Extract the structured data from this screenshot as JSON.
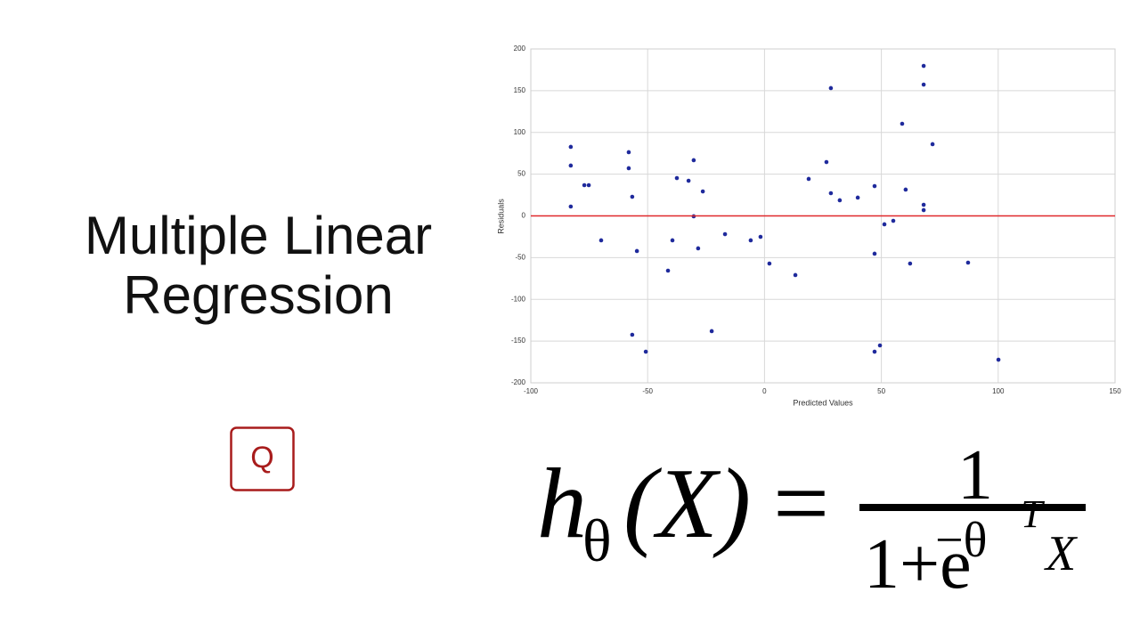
{
  "slide": {
    "title_lines": [
      "Multiple Linear",
      "Regression"
    ],
    "logo_letter": "Q"
  },
  "chart_data": {
    "type": "scatter",
    "x_label": "Predicted Values",
    "y_label": "Residuals",
    "x": [
      -82.9,
      -82.9,
      -82.9,
      -77.1,
      -75.2,
      -69.9,
      -58.1,
      -58.1,
      -56.6,
      -56.6,
      -54.6,
      -50.8,
      -41.3,
      -39.4,
      -37.5,
      -32.5,
      -30.3,
      -30.3,
      -28.4,
      -26.4,
      -22.6,
      -16.9,
      -5.9,
      -1.7,
      2.1,
      13.2,
      18.9,
      26.5,
      28.4,
      28.4,
      32.2,
      39.9,
      47.1,
      47.1,
      47.1,
      49.4,
      51.3,
      55.1,
      58.9,
      60.4,
      62.3,
      68.1,
      68.1,
      68.1,
      68.1,
      71.9,
      87.1,
      100.1
    ],
    "values": [
      82.7,
      60.3,
      11.2,
      36.8,
      36.8,
      -29.3,
      76.3,
      57.1,
      22.9,
      -142.4,
      -42.1,
      -162.7,
      -65.6,
      -29.3,
      45.3,
      42.1,
      66.7,
      -0.5,
      -38.9,
      29.3,
      -138.1,
      -21.9,
      -29.3,
      -25.1,
      -57.1,
      -70.9,
      44.3,
      64.5,
      153.1,
      27.2,
      18.7,
      21.9,
      35.7,
      -45.3,
      -162.7,
      -155.2,
      -10.1,
      -5.9,
      110.4,
      31.5,
      -57.1,
      179.7,
      157.3,
      13.3,
      6.9,
      85.9,
      -56.0,
      -172.3
    ],
    "color": "#1f2a9c",
    "xlim": [
      -100,
      150
    ],
    "ylim": [
      -200,
      200
    ],
    "xticks": [
      -100,
      -50,
      0,
      50,
      100,
      150
    ],
    "yticks": [
      -200,
      -150,
      -100,
      -50,
      0,
      50,
      100,
      150,
      200
    ],
    "grid": true,
    "hline": 0,
    "hline_color": "#e0282b"
  },
  "formula": {
    "h": "h",
    "sub": "θ",
    "arg": "(X)",
    "eq": "=",
    "numerator": "1",
    "denominator_base": "1+e",
    "exponent": "−θ",
    "exponent_sup": "T",
    "exponent_x": "X"
  }
}
